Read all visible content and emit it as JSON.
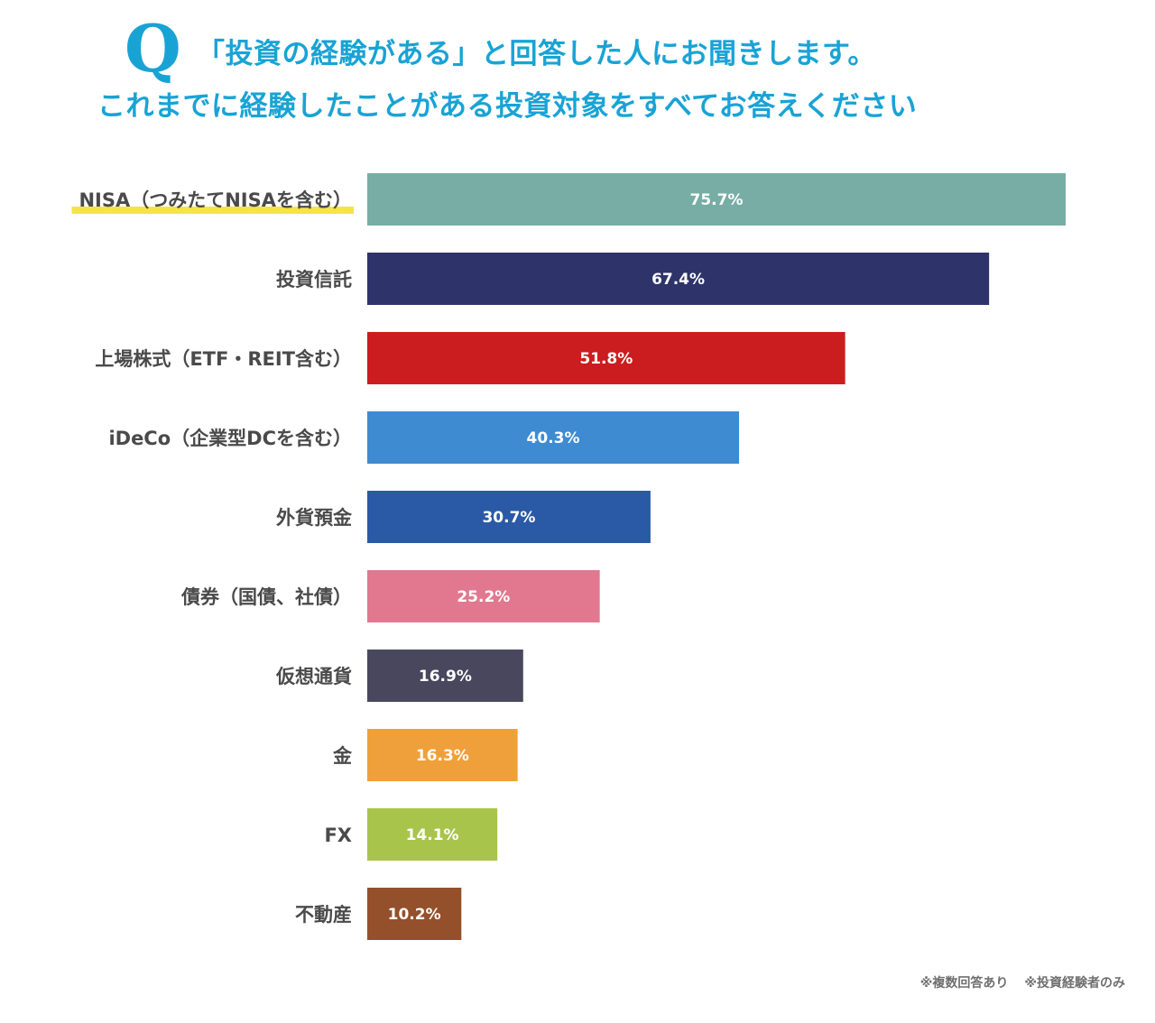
{
  "header": {
    "q_mark": "Q",
    "title_line1": "「投資の経験がある」と回答した人にお聞きします。",
    "title_line2": "これまでに経験したことがある投資対象をすべてお答えください"
  },
  "chart_data": {
    "type": "bar",
    "orientation": "horizontal",
    "categories": [
      "NISA（つみたてNISAを含む）",
      "投資信託",
      "上場株式（ETF・REIT含む）",
      "iDeCo（企業型DCを含む）",
      "外貨預金",
      "債券（国債、社債）",
      "仮想通貨",
      "金",
      "FX",
      "不動産"
    ],
    "values": [
      75.7,
      67.4,
      51.8,
      40.3,
      30.7,
      25.2,
      16.9,
      16.3,
      14.1,
      10.2
    ],
    "value_labels": [
      "75.7%",
      "67.4%",
      "51.8%",
      "40.3%",
      "30.7%",
      "25.2%",
      "16.9%",
      "16.3%",
      "14.1%",
      "10.2%"
    ],
    "colors": [
      "#77ada5",
      "#2e3469",
      "#cb1d1f",
      "#3e8bd2",
      "#2a5aa6",
      "#e2788f",
      "#49475e",
      "#f0a03a",
      "#a9c44a",
      "#94502b"
    ],
    "highlight": {
      "index": 0,
      "color": "#f5e542"
    },
    "xlim": [
      0,
      75.7
    ],
    "grid": false,
    "legend": "none"
  },
  "footnotes": {
    "note1": "※複数回答あり",
    "note2": "※投資経験者のみ"
  }
}
